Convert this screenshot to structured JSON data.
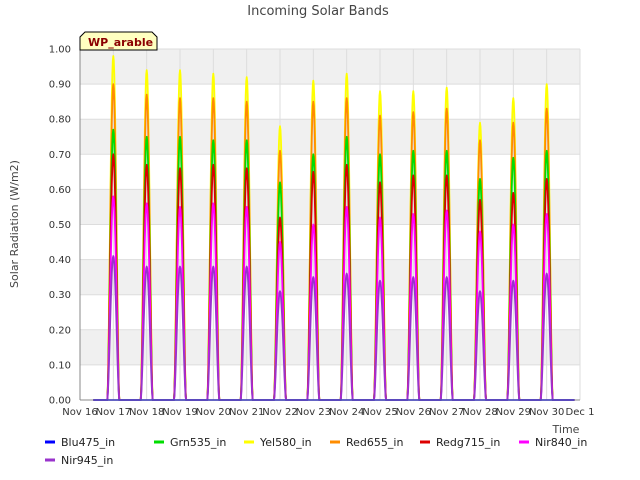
{
  "chart_data": {
    "type": "line",
    "title": "Incoming Solar Bands",
    "xlabel": "Time",
    "ylabel": "Solar Radiation (W/m2)",
    "ylim": [
      0,
      1.0
    ],
    "xlim": [
      "Nov 16",
      "Dec 1"
    ],
    "grid": true,
    "legend_position": "bottom",
    "annotation": "WP_arable",
    "yticks": [
      "0.00",
      "0.10",
      "0.20",
      "0.30",
      "0.40",
      "0.50",
      "0.60",
      "0.70",
      "0.80",
      "0.90",
      "1.00"
    ],
    "xticks": [
      "Nov 16",
      "Nov 17",
      "Nov 18",
      "Nov 19",
      "Nov 20",
      "Nov 21",
      "Nov 22",
      "Nov 23",
      "Nov 24",
      "Nov 25",
      "Nov 26",
      "Nov 27",
      "Nov 28",
      "Nov 29",
      "Nov 30",
      "Dec 1"
    ],
    "days": [
      "Nov 16",
      "Nov 17",
      "Nov 18",
      "Nov 19",
      "Nov 20",
      "Nov 21",
      "Nov 22",
      "Nov 23",
      "Nov 24",
      "Nov 25",
      "Nov 26",
      "Nov 27",
      "Nov 28",
      "Nov 29"
    ],
    "series": [
      {
        "name": "Blu475_in",
        "color": "#0000ff",
        "peaks": [
          0.0,
          0.0,
          0.0,
          0.0,
          0.0,
          0.0,
          0.0,
          0.0,
          0.0,
          0.0,
          0.0,
          0.0,
          0.0,
          0.0
        ]
      },
      {
        "name": "Grn535_in",
        "color": "#00dd00",
        "peaks": [
          0.77,
          0.75,
          0.75,
          0.74,
          0.74,
          0.62,
          0.7,
          0.75,
          0.7,
          0.71,
          0.71,
          0.63,
          0.69,
          0.71
        ]
      },
      {
        "name": "Yel580_in",
        "color": "#ffff00",
        "peaks": [
          0.98,
          0.94,
          0.94,
          0.93,
          0.92,
          0.78,
          0.91,
          0.93,
          0.88,
          0.88,
          0.89,
          0.79,
          0.86,
          0.9
        ]
      },
      {
        "name": "Red655_in",
        "color": "#ff8c00",
        "peaks": [
          0.9,
          0.87,
          0.86,
          0.86,
          0.85,
          0.71,
          0.85,
          0.86,
          0.81,
          0.82,
          0.83,
          0.74,
          0.79,
          0.83
        ]
      },
      {
        "name": "Redg715_in",
        "color": "#dd0000",
        "peaks": [
          0.7,
          0.67,
          0.66,
          0.67,
          0.66,
          0.52,
          0.65,
          0.67,
          0.62,
          0.64,
          0.64,
          0.57,
          0.59,
          0.63
        ]
      },
      {
        "name": "Nir840_in",
        "color": "#ff00ff",
        "peaks": [
          0.58,
          0.56,
          0.55,
          0.56,
          0.55,
          0.45,
          0.5,
          0.55,
          0.52,
          0.53,
          0.54,
          0.48,
          0.5,
          0.53
        ]
      },
      {
        "name": "Nir945_in",
        "color": "#9933cc",
        "peaks": [
          0.41,
          0.38,
          0.38,
          0.38,
          0.38,
          0.31,
          0.35,
          0.36,
          0.34,
          0.35,
          0.35,
          0.31,
          0.34,
          0.36
        ]
      }
    ]
  }
}
